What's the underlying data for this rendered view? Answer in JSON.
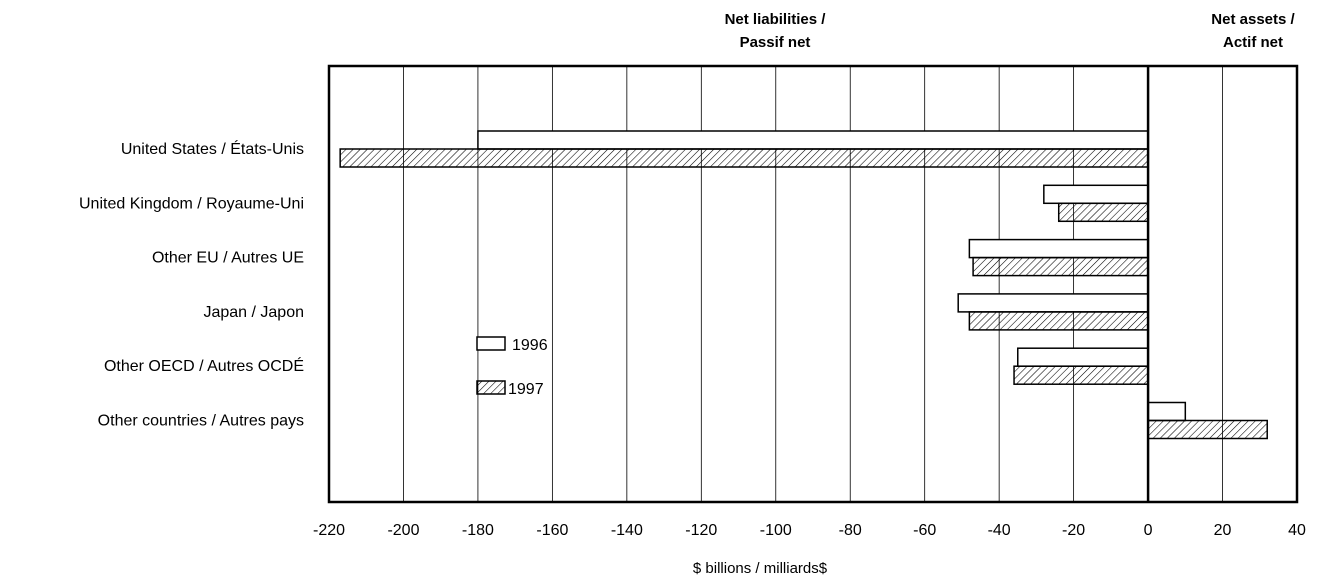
{
  "chart_data": {
    "type": "bar",
    "orientation": "horizontal",
    "categories": [
      "United States / États-Unis",
      "United Kingdom / Royaume-Uni",
      "Other EU / Autres UE",
      "Japan / Japon",
      "Other OECD / Autres OCDÉ",
      "Other countries / Autres pays"
    ],
    "series": [
      {
        "name": "1996",
        "values": [
          -180,
          -28,
          -48,
          -51,
          -35,
          10
        ],
        "fill": "#ffffff",
        "pattern": "none"
      },
      {
        "name": "1997",
        "values": [
          -217,
          -24,
          -47,
          -48,
          -36,
          32
        ],
        "fill": "#ffffff",
        "pattern": "diagonal-hatch"
      }
    ],
    "xlabel": "$ billions / milliards$",
    "xlim": [
      -220,
      40
    ],
    "xticks": [
      -220,
      -200,
      -180,
      -160,
      -140,
      -120,
      -100,
      -80,
      -60,
      -40,
      -20,
      0,
      20,
      40
    ],
    "grid": "vertical",
    "legend_position": "inside-center-left",
    "annotations": {
      "left": [
        "Net liabilities /",
        "Passif net"
      ],
      "right": [
        "Net assets /",
        "Actif net"
      ]
    }
  }
}
